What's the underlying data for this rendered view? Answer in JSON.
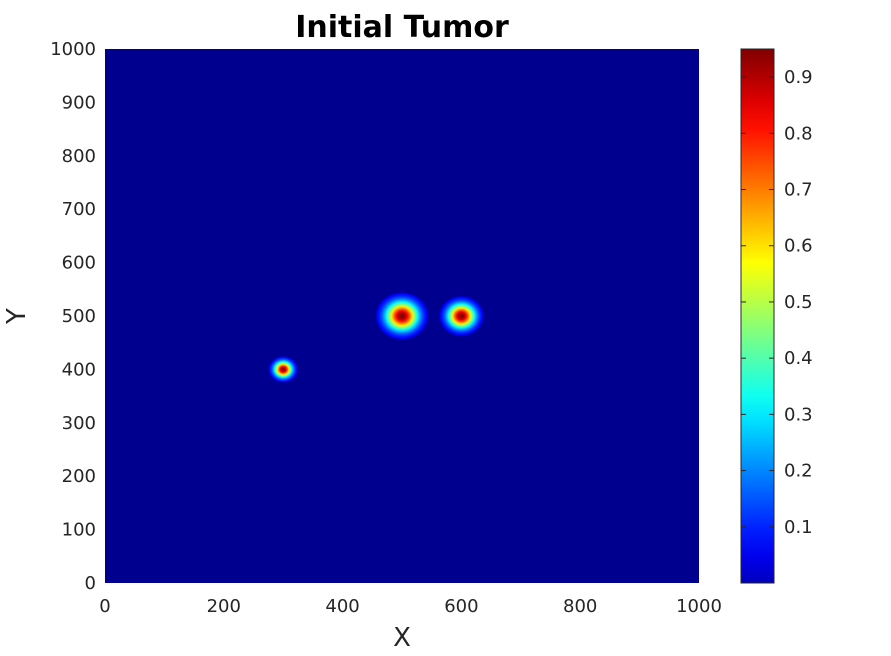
{
  "chart_data": {
    "type": "heatmap",
    "title": "Initial Tumor",
    "xlabel": "X",
    "ylabel": "Y",
    "xlim": [
      0,
      1000
    ],
    "ylim": [
      0,
      1000
    ],
    "x_ticks": [
      "0",
      "200",
      "400",
      "600",
      "800",
      "1000"
    ],
    "y_ticks": [
      "0",
      "100",
      "200",
      "300",
      "400",
      "500",
      "600",
      "700",
      "800",
      "900",
      "1000"
    ],
    "x_tick_values": [
      0,
      200,
      400,
      600,
      800,
      1000
    ],
    "y_tick_values": [
      0,
      100,
      200,
      300,
      400,
      500,
      600,
      700,
      800,
      900,
      1000
    ],
    "colormap": "jet",
    "background_value": 0.0,
    "colorbar": {
      "placement": "right",
      "range": [
        0,
        0.95
      ],
      "ticks": [
        "0.1",
        "0.2",
        "0.3",
        "0.4",
        "0.5",
        "0.6",
        "0.7",
        "0.8",
        "0.9"
      ],
      "tick_values": [
        0.1,
        0.2,
        0.3,
        0.4,
        0.5,
        0.6,
        0.7,
        0.8,
        0.9
      ]
    },
    "blobs": [
      {
        "cx": 300,
        "cy": 400,
        "peak": 0.95,
        "radius": 25
      },
      {
        "cx": 500,
        "cy": 500,
        "peak": 0.95,
        "radius": 45
      },
      {
        "cx": 600,
        "cy": 500,
        "peak": 0.95,
        "radius": 38
      }
    ]
  }
}
